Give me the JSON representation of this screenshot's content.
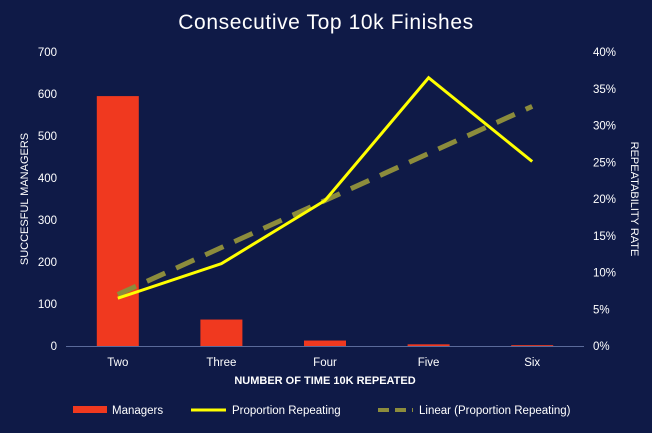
{
  "chart_data": {
    "type": "bar",
    "title": "Consecutive Top 10k Finishes",
    "xlabel": "NUMBER OF TIME 10K REPEATED",
    "ylabel": "SUCCESFUL MANAGERS",
    "y2label": "REPEATABILITY RATE",
    "categories": [
      "Two",
      "Three",
      "Four",
      "Five",
      "Six"
    ],
    "ylim": [
      0,
      700
    ],
    "yticks": [
      "0",
      "100",
      "200",
      "300",
      "400",
      "500",
      "600",
      "700"
    ],
    "y2lim": [
      0,
      0.4
    ],
    "y2ticks": [
      "0%",
      "5%",
      "10%",
      "15%",
      "20%",
      "25%",
      "30%",
      "35%",
      "40%"
    ],
    "grid": false,
    "legend_position": "bottom",
    "series": [
      {
        "name": "Managers",
        "type": "bar",
        "axis": "left",
        "color": "#f0391f",
        "values": [
          595,
          63,
          13,
          4,
          2
        ]
      },
      {
        "name": "Proportion Repeating",
        "type": "line",
        "axis": "right",
        "color": "#ffff00",
        "values": [
          0.065,
          0.112,
          0.198,
          0.365,
          0.251
        ]
      },
      {
        "name": "Linear (Proportion Repeating)",
        "type": "trendline",
        "axis": "right",
        "color": "#8c8c3c",
        "dashed": true,
        "values": [
          0.07,
          0.134,
          0.198,
          0.262,
          0.326
        ]
      }
    ]
  }
}
